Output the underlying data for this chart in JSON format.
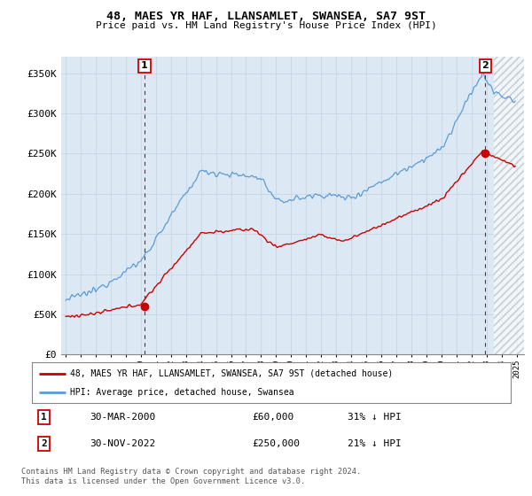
{
  "title": "48, MAES YR HAF, LLANSAMLET, SWANSEA, SA7 9ST",
  "subtitle": "Price paid vs. HM Land Registry's House Price Index (HPI)",
  "ylim": [
    0,
    370000
  ],
  "yticks": [
    0,
    50000,
    100000,
    150000,
    200000,
    250000,
    300000,
    350000
  ],
  "ytick_labels": [
    "£0",
    "£50K",
    "£100K",
    "£150K",
    "£200K",
    "£250K",
    "£300K",
    "£350K"
  ],
  "hpi_color": "#5b9bd5",
  "hpi_fill_color": "#dce9f5",
  "price_color": "#cc0000",
  "marker_color": "#cc0000",
  "sale1_year": 2000.25,
  "sale1_price": 60000,
  "sale1_label": "1",
  "sale2_year": 2022.92,
  "sale2_price": 250000,
  "sale2_label": "2",
  "legend_line1": "48, MAES YR HAF, LLANSAMLET, SWANSEA, SA7 9ST (detached house)",
  "legend_line2": "HPI: Average price, detached house, Swansea",
  "table_row1_num": "1",
  "table_row1_date": "30-MAR-2000",
  "table_row1_price": "£60,000",
  "table_row1_hpi": "31% ↓ HPI",
  "table_row2_num": "2",
  "table_row2_date": "30-NOV-2022",
  "table_row2_price": "£250,000",
  "table_row2_hpi": "21% ↓ HPI",
  "footnote1": "Contains HM Land Registry data © Crown copyright and database right 2024.",
  "footnote2": "This data is licensed under the Open Government Licence v3.0.",
  "bg_color": "#ffffff",
  "grid_color": "#c8d8e8",
  "hatch_cutoff": 2023.5
}
